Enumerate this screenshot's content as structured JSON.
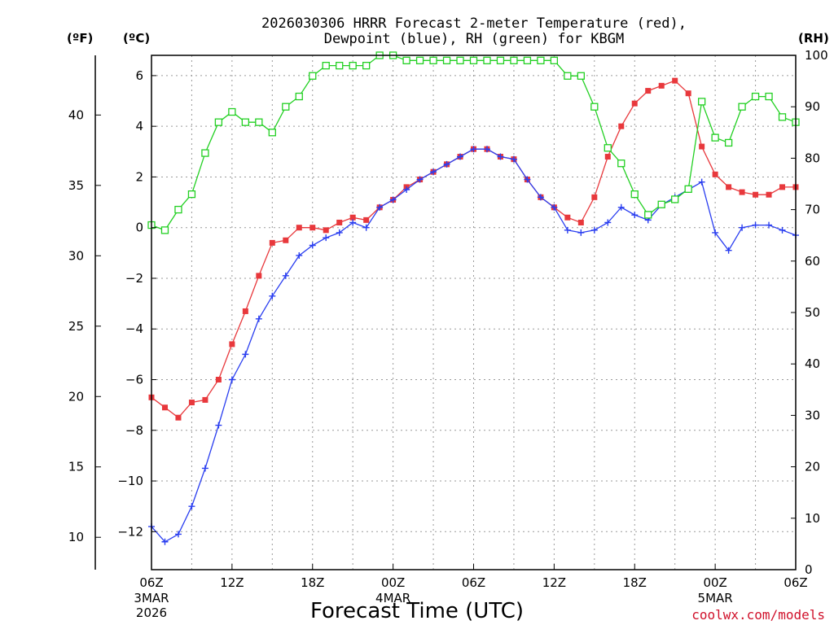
{
  "chart_data": {
    "type": "line",
    "title_line1": "2026030306 HRRR Forecast 2-meter Temperature (red),",
    "title_line2": "Dewpoint (blue), RH (green) for KBGM",
    "xlabel": "Forecast Time (UTC)",
    "credit": "coolwx.com/models",
    "units": {
      "fahrenheit": "(ºF)",
      "celsius": "(ºC)",
      "rh": "(RH)"
    },
    "x_range_hours": [
      0,
      48
    ],
    "celsius_range": [
      -13.5,
      6.8
    ],
    "rh_range": [
      0,
      100
    ],
    "celsius_ticks": [
      "-12",
      "-10",
      "-8",
      "-6",
      "-4",
      "-2",
      "0",
      "2",
      "4",
      "6"
    ],
    "fahrenheit_ticks": [
      "10",
      "15",
      "20",
      "25",
      "30",
      "35",
      "40"
    ],
    "rh_ticks": [
      "0",
      "10",
      "20",
      "30",
      "40",
      "50",
      "60",
      "70",
      "80",
      "90",
      "100"
    ],
    "x_ticks": [
      {
        "hour": 0,
        "label": "06Z",
        "sub1": "3MAR",
        "sub2": "2026"
      },
      {
        "hour": 6,
        "label": "12Z"
      },
      {
        "hour": 12,
        "label": "18Z"
      },
      {
        "hour": 18,
        "label": "00Z",
        "sub1": "4MAR"
      },
      {
        "hour": 24,
        "label": "06Z"
      },
      {
        "hour": 30,
        "label": "12Z"
      },
      {
        "hour": 36,
        "label": "18Z"
      },
      {
        "hour": 42,
        "label": "00Z",
        "sub1": "5MAR"
      },
      {
        "hour": 48,
        "label": "06Z"
      }
    ],
    "hours": [
      0,
      1,
      2,
      3,
      4,
      5,
      6,
      7,
      8,
      9,
      10,
      11,
      12,
      13,
      14,
      15,
      16,
      17,
      18,
      19,
      20,
      21,
      22,
      23,
      24,
      25,
      26,
      27,
      28,
      29,
      30,
      31,
      32,
      33,
      34,
      35,
      36,
      37,
      38,
      39,
      40,
      41,
      42,
      43,
      44,
      45,
      46,
      47,
      48
    ],
    "series": [
      {
        "name": "Temperature",
        "color": "#e8383c",
        "marker": "filled-square",
        "axis": "celsius",
        "values": [
          -6.7,
          -7.1,
          -7.5,
          -6.9,
          -6.8,
          -6.0,
          -4.6,
          -3.3,
          -1.9,
          -0.6,
          -0.5,
          0.0,
          0.0,
          -0.1,
          0.2,
          0.4,
          0.3,
          0.8,
          1.1,
          1.6,
          1.9,
          2.2,
          2.5,
          2.8,
          3.1,
          3.1,
          2.8,
          2.7,
          1.9,
          1.2,
          0.8,
          0.4,
          0.2,
          1.2,
          2.8,
          4.0,
          4.9,
          5.4,
          5.6,
          5.8,
          5.3,
          3.2,
          2.1,
          1.6,
          1.4,
          1.3,
          1.3,
          1.6,
          1.6
        ]
      },
      {
        "name": "Dewpoint",
        "color": "#2a3ef0",
        "marker": "plus",
        "axis": "celsius",
        "values": [
          -11.8,
          -12.4,
          -12.1,
          -11.0,
          -9.5,
          -7.8,
          -6.0,
          -5.0,
          -3.6,
          -2.7,
          -1.9,
          -1.1,
          -0.7,
          -0.4,
          -0.2,
          0.2,
          0.0,
          0.8,
          1.1,
          1.5,
          1.9,
          2.2,
          2.5,
          2.8,
          3.1,
          3.1,
          2.8,
          2.7,
          1.9,
          1.2,
          0.8,
          -0.1,
          -0.2,
          -0.1,
          0.2,
          0.8,
          0.5,
          0.3,
          0.9,
          1.2,
          1.5,
          1.8,
          -0.2,
          -0.9,
          0.0,
          0.1,
          0.1,
          -0.1,
          -0.3
        ]
      },
      {
        "name": "RH",
        "color": "#22d022",
        "marker": "open-square",
        "axis": "rh",
        "values": [
          67,
          66,
          70,
          73,
          81,
          87,
          89,
          87,
          87,
          85,
          90,
          92,
          96,
          98,
          98,
          98,
          98,
          100,
          100,
          99,
          99,
          99,
          99,
          99,
          99,
          99,
          99,
          99,
          99,
          99,
          99,
          96,
          96,
          90,
          82,
          79,
          73,
          69,
          71,
          72,
          74,
          91,
          84,
          83,
          90,
          92,
          92,
          88,
          87
        ]
      }
    ]
  }
}
